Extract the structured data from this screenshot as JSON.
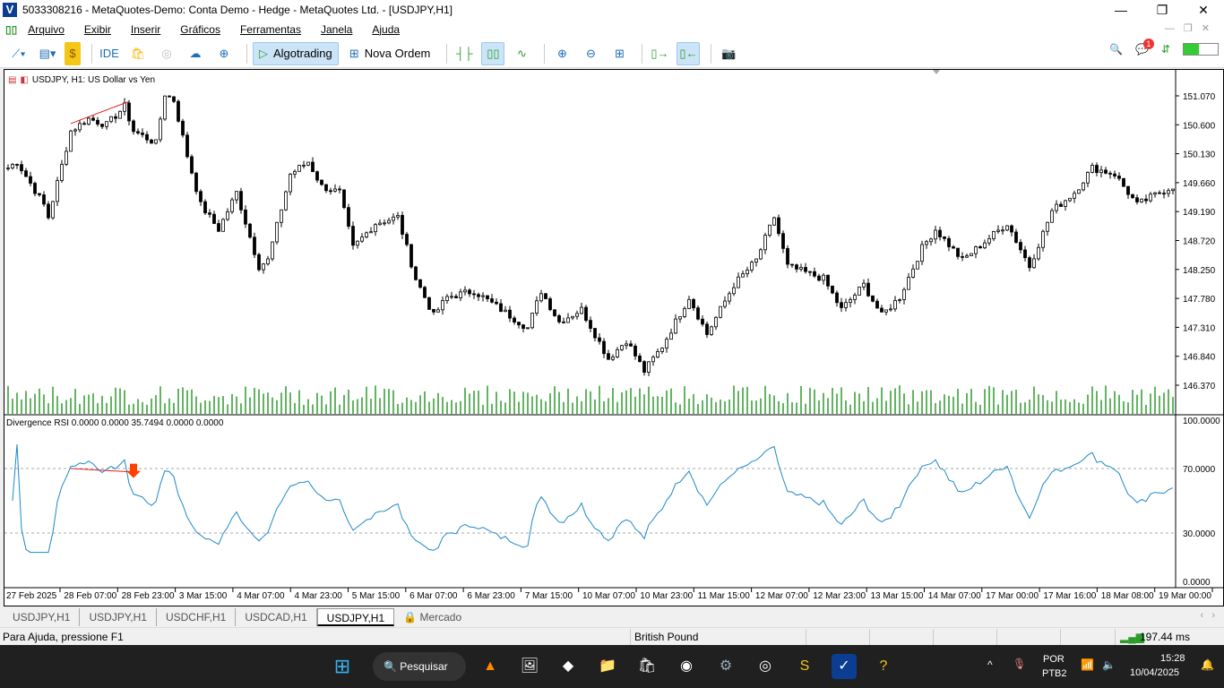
{
  "window": {
    "title": "5033308216 - MetaQuotes-Demo: Conta Demo - Hedge - MetaQuotes Ltd. - [USDJPY,H1]",
    "controls": [
      "minimize-icon",
      "maximize-icon",
      "close-icon"
    ]
  },
  "menu": [
    "Arquivo",
    "Exibir",
    "Inserir",
    "Gráficos",
    "Ferramentas",
    "Janela",
    "Ajuda"
  ],
  "toolbar": {
    "ide": "IDE",
    "algotrading": "Algotrading",
    "nova_ordem": "Nova Ordem",
    "notifications": "1"
  },
  "chart": {
    "header": "USDJPY, H1:  US Dollar vs Yen",
    "indicator_label": "Divergence RSI 0.0000 0.0000 35.7494 0.0000 0.0000",
    "price_ticks": [
      "151.070",
      "150.600",
      "150.130",
      "149.660",
      "149.190",
      "148.720",
      "148.250",
      "147.780",
      "147.310",
      "146.840",
      "146.370"
    ],
    "rsi_ticks": [
      "100.0000",
      "70.0000",
      "30.0000",
      "0.0000"
    ],
    "rsi_levels": [
      70,
      30
    ],
    "time_ticks": [
      "27 Feb 2025",
      "28 Feb 07:00",
      "28 Feb 23:00",
      "3 Mar 15:00",
      "4 Mar 07:00",
      "4 Mar 23:00",
      "5 Mar 15:00",
      "6 Mar 07:00",
      "6 Mar 23:00",
      "7 Mar 15:00",
      "10 Mar 07:00",
      "10 Mar 23:00",
      "11 Mar 15:00",
      "12 Mar 07:00",
      "12 Mar 23:00",
      "13 Mar 15:00",
      "14 Mar 07:00",
      "17 Mar 00:00",
      "17 Mar 16:00",
      "18 Mar 08:00",
      "19 Mar 00:00"
    ],
    "colors": {
      "candle": "#000000",
      "volume": "#2e9b2e",
      "rsi": "#1e88c8",
      "divergence": "#e02020",
      "arrow": "#ff4000"
    },
    "price_path": [
      [
        0,
        149.9
      ],
      [
        2,
        150.0
      ],
      [
        8,
        149.3
      ],
      [
        9,
        149.1
      ],
      [
        14,
        150.5
      ],
      [
        18,
        150.7
      ],
      [
        22,
        150.6
      ],
      [
        26,
        150.9
      ],
      [
        28,
        150.5
      ],
      [
        33,
        150.3
      ],
      [
        35,
        151.1
      ],
      [
        37,
        151.0
      ],
      [
        40,
        150.1
      ],
      [
        43,
        149.3
      ],
      [
        47,
        148.9
      ],
      [
        51,
        149.5
      ],
      [
        56,
        148.3
      ],
      [
        58,
        148.4
      ],
      [
        63,
        149.8
      ],
      [
        67,
        150.0
      ],
      [
        70,
        149.6
      ],
      [
        74,
        149.5
      ],
      [
        77,
        148.6
      ],
      [
        82,
        149.0
      ],
      [
        87,
        149.1
      ],
      [
        91,
        148.1
      ],
      [
        95,
        147.5
      ],
      [
        98,
        147.8
      ],
      [
        104,
        147.9
      ],
      [
        110,
        147.6
      ],
      [
        116,
        147.3
      ],
      [
        119,
        147.9
      ],
      [
        123,
        147.4
      ],
      [
        128,
        147.6
      ],
      [
        134,
        146.8
      ],
      [
        138,
        147.1
      ],
      [
        142,
        146.6
      ],
      [
        146,
        147.0
      ],
      [
        152,
        147.8
      ],
      [
        156,
        147.2
      ],
      [
        162,
        148.0
      ],
      [
        167,
        148.4
      ],
      [
        171,
        149.1
      ],
      [
        174,
        148.3
      ],
      [
        182,
        148.1
      ],
      [
        186,
        147.6
      ],
      [
        191,
        148.0
      ],
      [
        195,
        147.5
      ],
      [
        199,
        147.8
      ],
      [
        204,
        148.6
      ],
      [
        207,
        148.9
      ],
      [
        213,
        148.4
      ],
      [
        218,
        148.7
      ],
      [
        223,
        149.0
      ],
      [
        228,
        148.3
      ],
      [
        233,
        149.2
      ],
      [
        238,
        149.5
      ],
      [
        242,
        149.9
      ],
      [
        247,
        149.8
      ],
      [
        252,
        149.3
      ],
      [
        257,
        149.5
      ],
      [
        260,
        149.6
      ]
    ]
  },
  "tabs": [
    {
      "label": "USDJPY,H1"
    },
    {
      "label": "USDJPY,H1"
    },
    {
      "label": "USDCHF,H1"
    },
    {
      "label": "USDCAD,H1"
    },
    {
      "label": "USDJPY,H1",
      "active": true
    },
    {
      "label": "Mercado"
    }
  ],
  "status": {
    "help": "Para Ajuda, pressione F1",
    "profile": "British Pound",
    "ping": "197.44 ms"
  },
  "taskbar": {
    "search": "Pesquisar",
    "lang": "POR",
    "layout": "PTB2",
    "time": "15:28",
    "date": "10/04/2025"
  }
}
